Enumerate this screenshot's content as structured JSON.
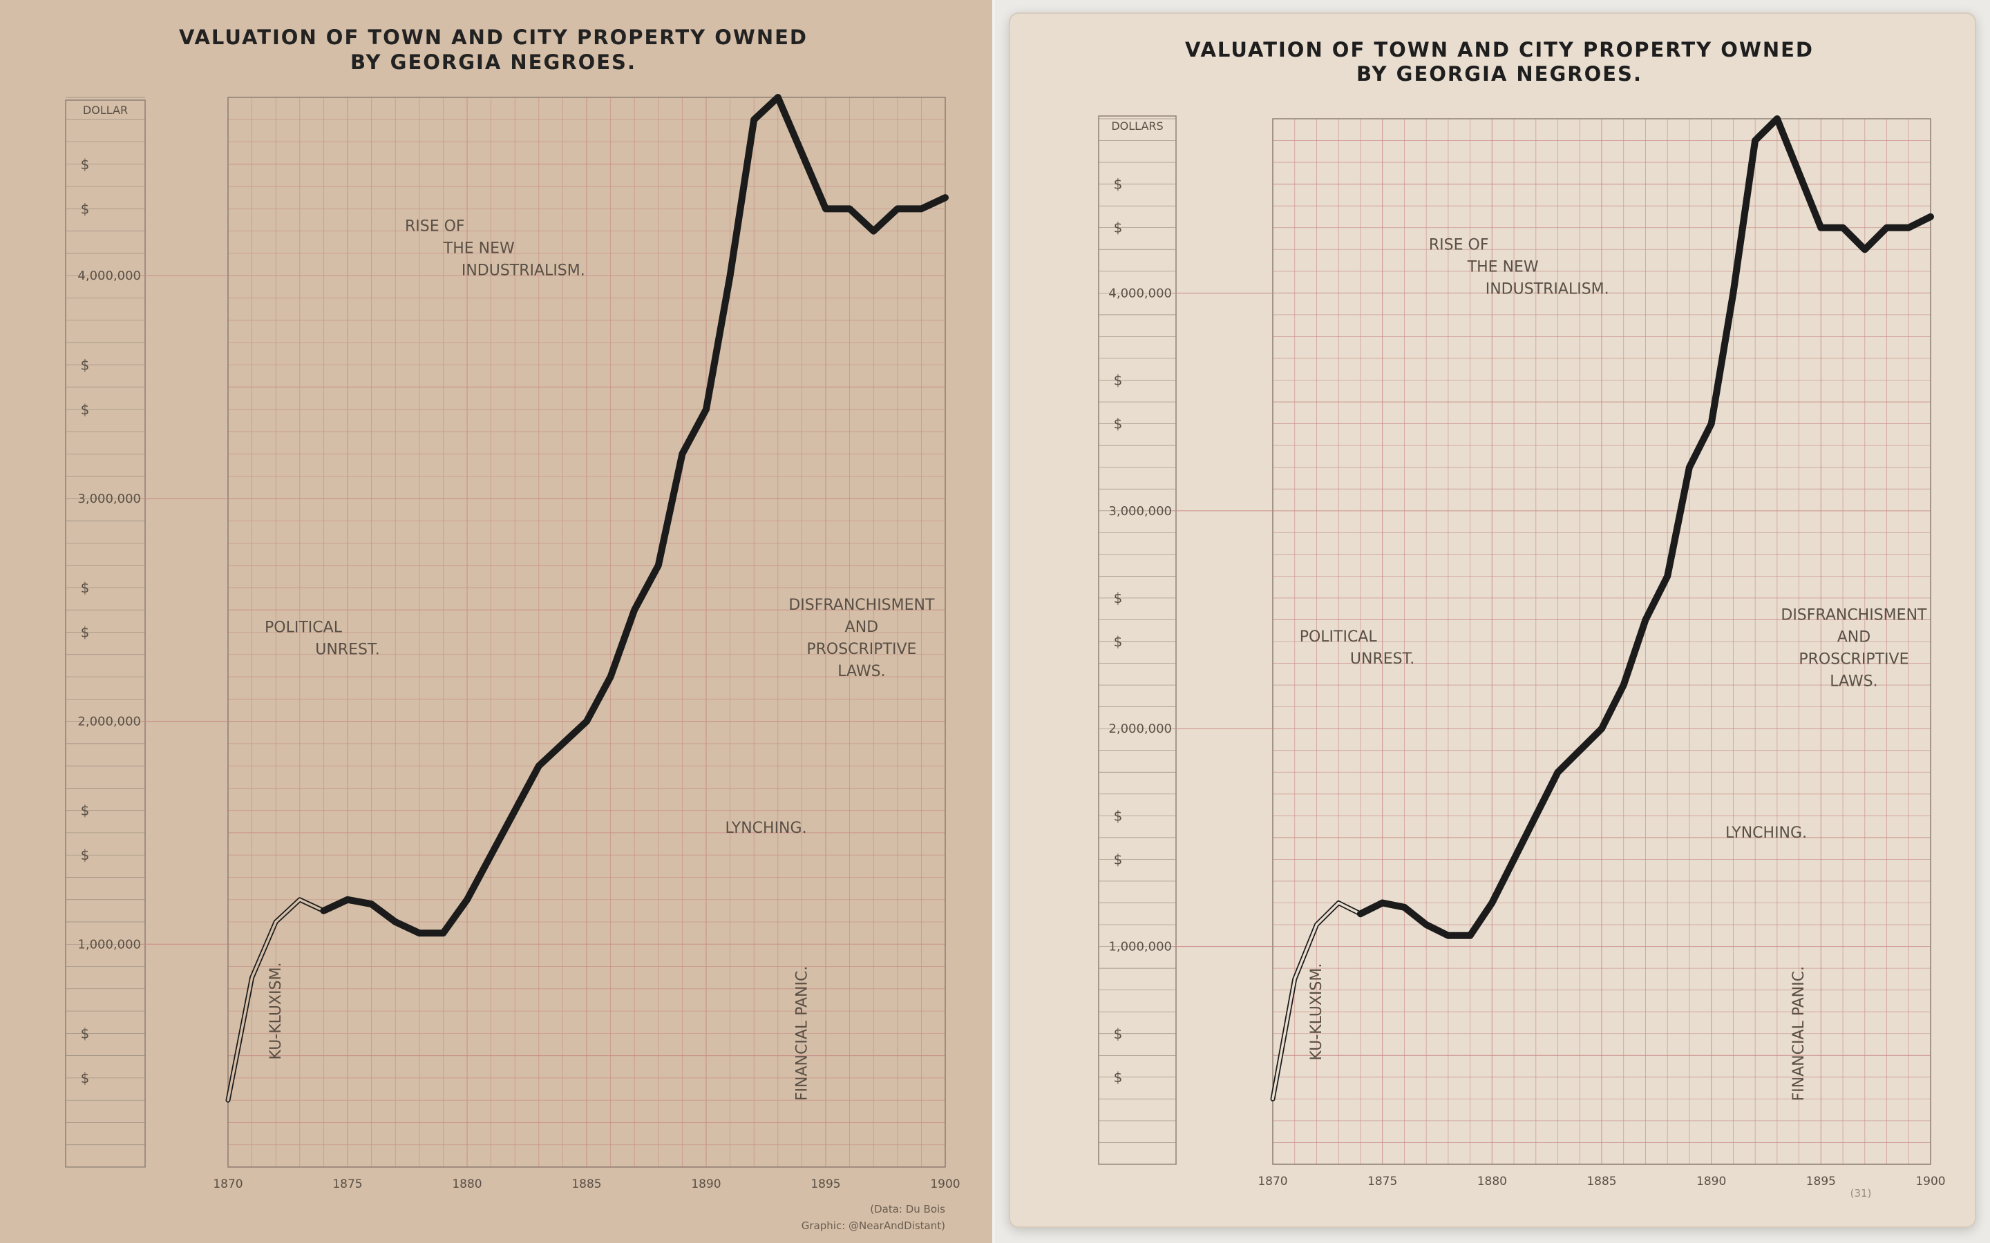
{
  "panels": [
    {
      "id": "left",
      "title_line1": "VALUATION OF TOWN AND CITY PROPERTY OWNED",
      "title_line2": "BY GEORGIA NEGROES.",
      "unit_label": "DOLLAR",
      "credit_line1": "(Data: Du Bois",
      "credit_line2": "Graphic: @NearAndDistant)"
    },
    {
      "id": "right",
      "title_line1": "VALUATION OF TOWN AND CITY PROPERTY OWNED",
      "title_line2": "BY GEORGIA NEGROES.",
      "unit_label": "DOLLARS",
      "plate_number": "(31)"
    }
  ],
  "colors": {
    "left_background": "#d4bea7",
    "right_paper": "#e8ddcf",
    "grid_line": "#c98a84",
    "ink": "#1b1b1b",
    "label_text": "#5a4f45"
  },
  "chart_data": {
    "type": "line",
    "title": "VALUATION OF TOWN AND CITY PROPERTY OWNED BY GEORGIA NEGROES.",
    "xlabel": "",
    "ylabel": "DOLLAR",
    "xlim": [
      1870,
      1900
    ],
    "ylim": [
      0,
      4800000
    ],
    "x_ticks": [
      "1870",
      "1875",
      "1880",
      "1885",
      "1890",
      "1895",
      "1900"
    ],
    "y_tick_values": [
      1000000,
      2000000,
      3000000,
      4000000
    ],
    "y_tick_labels": [
      "1,000,000",
      "2,000,000",
      "3,000,000",
      "4,000,000"
    ],
    "dollar_marks": [
      400000,
      600000,
      1400000,
      1600000,
      2400000,
      2600000,
      3400000,
      3600000,
      4300000,
      4500000
    ],
    "grid": true,
    "series": [
      {
        "x": [
          1870,
          1871,
          1872,
          1873,
          1874,
          1875,
          1876,
          1877,
          1878,
          1879,
          1880,
          1881,
          1882,
          1883,
          1884,
          1885,
          1886,
          1887,
          1888,
          1889,
          1890,
          1891,
          1892,
          1893,
          1894,
          1895,
          1896,
          1897,
          1898,
          1899,
          1900
        ],
        "y": [
          300000,
          850000,
          1100000,
          1200000,
          1150000,
          1200000,
          1180000,
          1100000,
          1050000,
          1050000,
          1200000,
          1400000,
          1600000,
          1800000,
          1900000,
          2000000,
          2200000,
          2500000,
          2700000,
          3200000,
          3400000,
          4000000,
          4700000,
          4800000,
          4550000,
          4300000,
          4300000,
          4200000,
          4300000,
          4300000,
          4350000
        ],
        "estimated_start_x": 1874
      }
    ],
    "annotations": [
      {
        "lines": [
          "RISE OF",
          "THE NEW",
          "INDUSTRIALISM."
        ],
        "x": 1880.5,
        "y": 4200000
      },
      {
        "lines": [
          "POLITICAL",
          "UNREST."
        ],
        "x": 1875,
        "y": 2400000
      },
      {
        "lines": [
          "DISFRANCHISMENT",
          "AND",
          "PROSCRIPTIVE",
          "LAWS."
        ],
        "x": 1896.5,
        "y": 2500000
      },
      {
        "lines": [
          "LYNCHING."
        ],
        "x": 1892.5,
        "y": 1500000
      },
      {
        "lines": [
          "KU-KLUXISM."
        ],
        "x": 1872.2,
        "y": 700000,
        "rotate": true
      },
      {
        "lines": [
          "FINANCIAL   PANIC."
        ],
        "x": 1894.2,
        "y": 600000,
        "rotate": true
      }
    ]
  }
}
